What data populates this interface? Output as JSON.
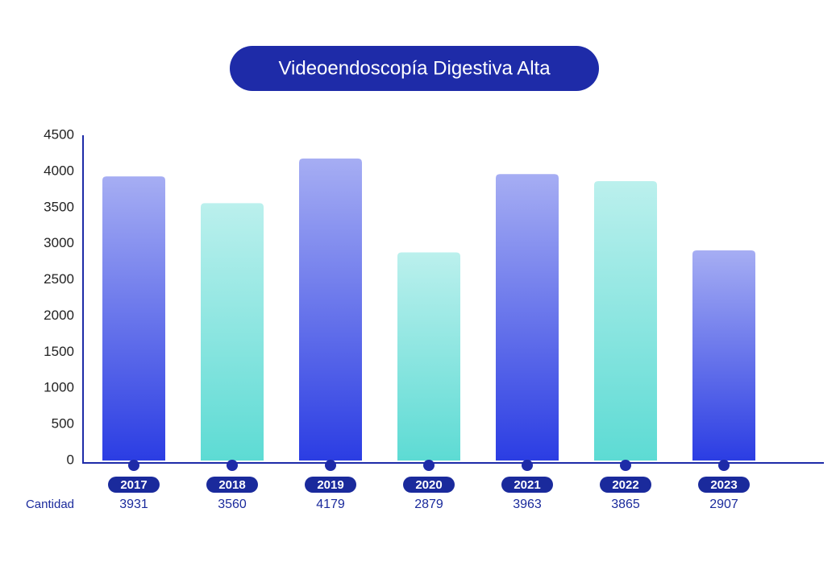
{
  "chart_data": {
    "type": "bar",
    "title": "Videoendoscopía Digestiva Alta",
    "categories": [
      "2017",
      "2018",
      "2019",
      "2020",
      "2021",
      "2022",
      "2023"
    ],
    "values": [
      3931,
      3560,
      4179,
      2879,
      3963,
      3865,
      2907
    ],
    "colors": [
      "#2b3de3",
      "#5ddbd4",
      "#2b3de3",
      "#5ddbd4",
      "#2b3de3",
      "#5ddbd4",
      "#2b3de3"
    ],
    "row_label": "Cantidad",
    "ylim": [
      0,
      4500
    ],
    "yticks": [
      0,
      500,
      1000,
      1500,
      2000,
      2500,
      3000,
      3500,
      4000,
      4500
    ],
    "grid": false
  }
}
